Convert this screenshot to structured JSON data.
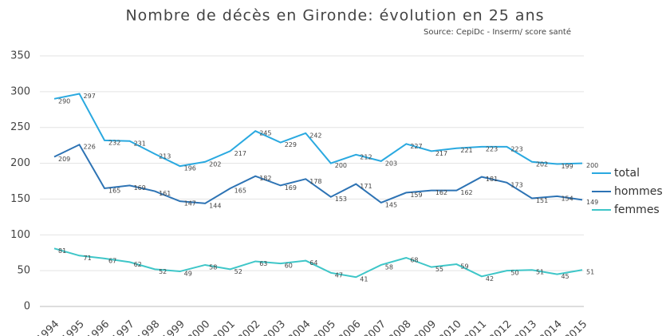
{
  "chart_data": {
    "type": "line",
    "title": "Nombre de décès en Gironde: évolution en 25 ans",
    "subtitle": "Source: CepiDc - Inserm/ score santé",
    "categories": [
      "1994",
      "1995",
      "1996",
      "1997",
      "1998",
      "1999",
      "2000",
      "2001",
      "2002",
      "2003",
      "2004",
      "2005",
      "2006",
      "2007",
      "2008",
      "2009",
      "2010",
      "2011",
      "2012",
      "2013",
      "2014",
      "2015"
    ],
    "series": [
      {
        "name": "total",
        "color": "#2aa9e0",
        "values": [
          290,
          297,
          232,
          231,
          213,
          196,
          202,
          217,
          245,
          229,
          242,
          200,
          212,
          203,
          227,
          217,
          221,
          223,
          223,
          202,
          199,
          200
        ]
      },
      {
        "name": "hommes",
        "color": "#2d73b4",
        "values": [
          209,
          226,
          165,
          169,
          161,
          147,
          144,
          165,
          182,
          169,
          178,
          153,
          171,
          145,
          159,
          162,
          162,
          181,
          173,
          151,
          154,
          149
        ]
      },
      {
        "name": "femmes",
        "color": "#3ec6c8",
        "values": [
          81,
          71,
          67,
          62,
          52,
          49,
          58,
          52,
          63,
          60,
          64,
          47,
          41,
          58,
          68,
          55,
          59,
          42,
          50,
          51,
          45,
          51
        ]
      }
    ],
    "ylim": [
      0,
      350
    ],
    "yticks": [
      0,
      50,
      100,
      150,
      200,
      250,
      300,
      350
    ],
    "grid": true,
    "legend": "right"
  }
}
